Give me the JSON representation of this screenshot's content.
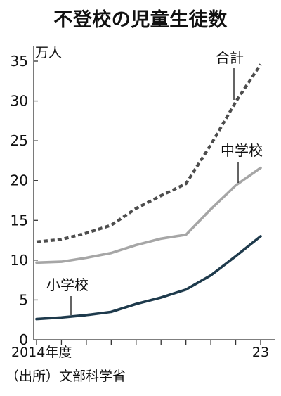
{
  "chart_data": {
    "type": "line",
    "title": "不登校の児童生徒数",
    "unit_label": "万人",
    "source": "（出所）文部科学省",
    "x": [
      2014,
      2015,
      2016,
      2017,
      2018,
      2019,
      2020,
      2021,
      2022,
      2023
    ],
    "x_tick_labels": [
      {
        "x": 2014,
        "label": "2014年度"
      },
      {
        "x": 2023,
        "label": "23"
      }
    ],
    "ylim": [
      0,
      37
    ],
    "y_ticks": [
      0,
      5,
      10,
      15,
      20,
      25,
      30,
      35
    ],
    "grid": false,
    "series": [
      {
        "name": "合計",
        "style": "dashed",
        "color": "#4d4d4d",
        "values": [
          12.3,
          12.6,
          13.4,
          14.4,
          16.5,
          18.1,
          19.6,
          24.5,
          29.9,
          34.6
        ]
      },
      {
        "name": "中学校",
        "style": "solid",
        "color": "#a6a6a6",
        "values": [
          9.7,
          9.8,
          10.3,
          10.9,
          11.9,
          12.7,
          13.2,
          16.4,
          19.4,
          21.6
        ]
      },
      {
        "name": "小学校",
        "style": "solid",
        "color": "#1e3a4c",
        "values": [
          2.6,
          2.8,
          3.1,
          3.5,
          4.5,
          5.3,
          6.3,
          8.1,
          10.5,
          13.0
        ]
      }
    ]
  }
}
